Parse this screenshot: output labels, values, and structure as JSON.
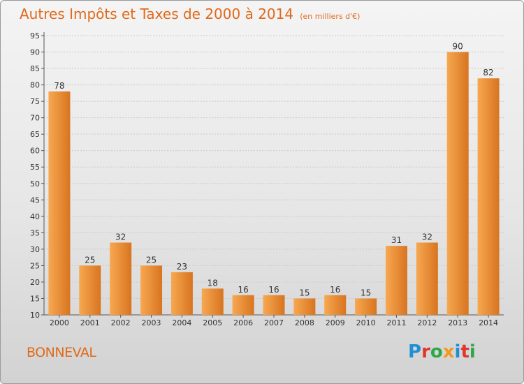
{
  "header": {
    "title": "Autres Impôts et Taxes de 2000 à 2014",
    "unit": "(en milliers d'€)"
  },
  "footer": {
    "place": "BONNEVAL",
    "logo": "Proxiti"
  },
  "colors": {
    "bar_light": "#f7a851",
    "bar_dark": "#d87420",
    "accent": "#e06a1b",
    "grid": "#c9c9c9"
  },
  "chart_data": {
    "type": "bar",
    "title": "Autres Impôts et Taxes de 2000 à 2014",
    "subtitle": "(en milliers d'€)",
    "xlabel": "",
    "ylabel": "",
    "categories": [
      "2000",
      "2001",
      "2002",
      "2003",
      "2004",
      "2005",
      "2006",
      "2007",
      "2008",
      "2009",
      "2010",
      "2011",
      "2012",
      "2013",
      "2014"
    ],
    "values": [
      78,
      25,
      32,
      25,
      23,
      18,
      16,
      16,
      15,
      16,
      15,
      31,
      32,
      90,
      82
    ],
    "ylim": [
      10,
      95
    ],
    "yticks": [
      10,
      15,
      20,
      25,
      30,
      35,
      40,
      45,
      50,
      55,
      60,
      65,
      70,
      75,
      80,
      85,
      90,
      95
    ],
    "grid": true,
    "legend": "none",
    "data_labels": true
  }
}
